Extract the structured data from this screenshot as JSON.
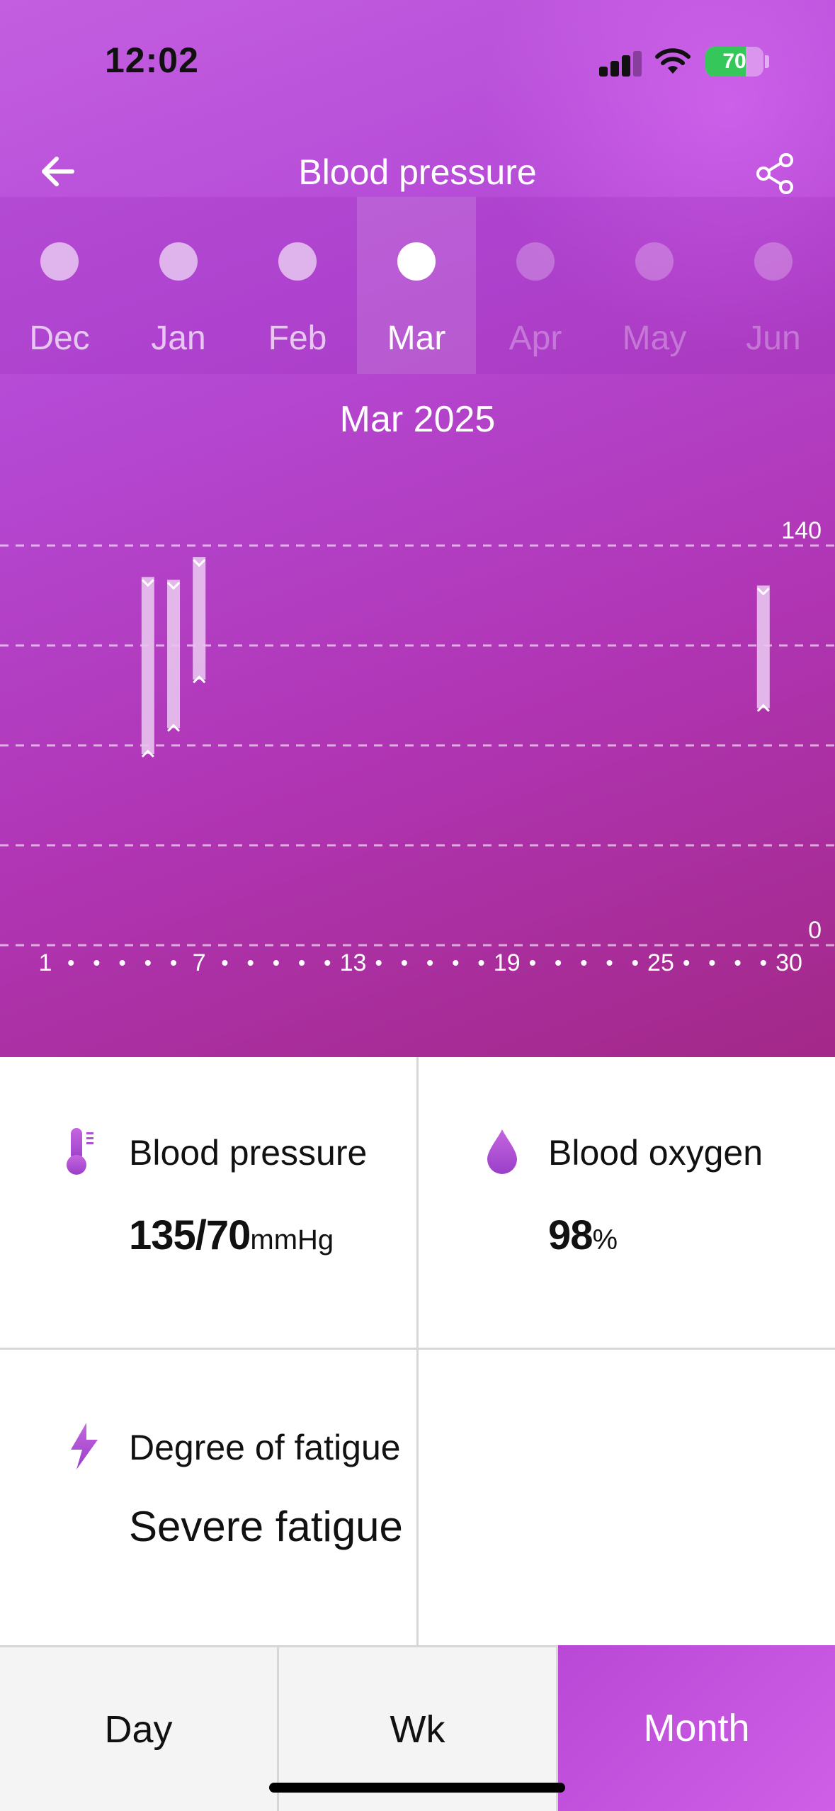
{
  "status_bar": {
    "time": "12:02",
    "battery_percent": 70,
    "battery_label": "70"
  },
  "header": {
    "title": "Blood pressure",
    "back_icon": "arrow-left-icon",
    "share_icon": "share-icon"
  },
  "months": [
    {
      "label": "Dec",
      "state": "past"
    },
    {
      "label": "Jan",
      "state": "past"
    },
    {
      "label": "Feb",
      "state": "past"
    },
    {
      "label": "Mar",
      "state": "selected"
    },
    {
      "label": "Apr",
      "state": "future"
    },
    {
      "label": "May",
      "state": "future"
    },
    {
      "label": "Jun",
      "state": "future"
    }
  ],
  "period_label": "Mar 2025",
  "chart_data": {
    "type": "range-bar",
    "ylim": [
      0,
      140
    ],
    "y_gridlines": [
      140,
      105,
      70,
      35,
      0
    ],
    "y_tick_labels": [
      "140",
      "0"
    ],
    "x_range": [
      1,
      30
    ],
    "x_tick_labels": [
      "1",
      "7",
      "13",
      "19",
      "25",
      "30"
    ],
    "x_dot_days": [
      2,
      3,
      4,
      5,
      6,
      8,
      9,
      10,
      11,
      12,
      14,
      15,
      16,
      17,
      18,
      20,
      21,
      22,
      23,
      24,
      26,
      27,
      28,
      29
    ],
    "grid": true,
    "series": [
      {
        "values": [
          {
            "day": 5,
            "systolic": 129,
            "diastolic": 67
          },
          {
            "day": 6,
            "systolic": 128,
            "diastolic": 76
          },
          {
            "day": 7,
            "systolic": 136,
            "diastolic": 93
          },
          {
            "day": 29,
            "systolic": 126,
            "diastolic": 83
          }
        ]
      }
    ]
  },
  "cards": {
    "blood_pressure": {
      "label": "Blood pressure",
      "value": "135/70",
      "unit": "mmHg",
      "icon": "thermometer-icon"
    },
    "blood_oxygen": {
      "label": "Blood oxygen",
      "value": "98",
      "unit": "%",
      "icon": "droplet-icon"
    },
    "fatigue": {
      "label": "Degree of fatigue",
      "value": "Severe fatigue",
      "icon": "lightning-icon"
    }
  },
  "tabs": [
    {
      "label": "Day",
      "active": false
    },
    {
      "label": "Wk",
      "active": false
    },
    {
      "label": "Month",
      "active": true
    }
  ],
  "colors": {
    "accent": "#b948d6",
    "chart_bar": "#e8c4ee"
  }
}
